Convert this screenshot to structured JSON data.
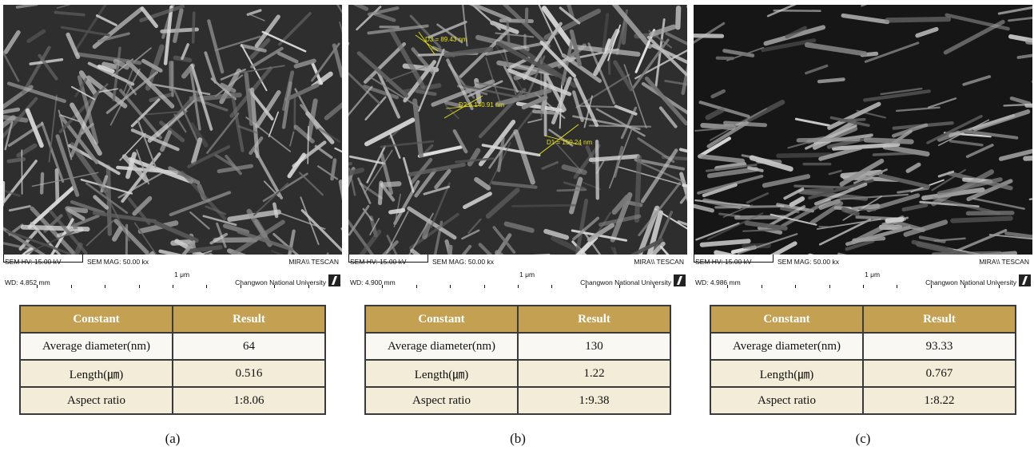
{
  "panels": [
    {
      "caption": "(a)",
      "sem": {
        "hv": "SEM HV: 15.00 kV",
        "mag": "SEM MAG: 50.00 kx",
        "brand": "MIRA\\\\ TESCAN",
        "scale": "1 μm",
        "wd": "WD: 4.852 mm",
        "university": "Changwon National  University"
      },
      "table": {
        "header": [
          "Constant",
          "Result"
        ],
        "rows": [
          [
            "Average diameter(nm)",
            "64"
          ],
          [
            "Length(㎛)",
            "0.516"
          ],
          [
            "Aspect ratio",
            "1:8.06"
          ]
        ]
      }
    },
    {
      "caption": "(b)",
      "sem": {
        "hv": "SEM HV: 15.00 kV",
        "mag": "SEM MAG: 50.00 kx",
        "brand": "MIRA\\\\ TESCAN",
        "scale": "1 μm",
        "wd": "WD: 4.900 mm",
        "university": "Changwon National  University",
        "measurements": [
          "D3 = 89.43 nm",
          "D2 = 140.91 nm",
          "D1 = 150.24 nm"
        ]
      },
      "table": {
        "header": [
          "Constant",
          "Result"
        ],
        "rows": [
          [
            "Average diameter(nm)",
            "130"
          ],
          [
            "Length(㎛)",
            "1.22"
          ],
          [
            "Aspect ratio",
            "1:9.38"
          ]
        ]
      }
    },
    {
      "caption": "(c)",
      "sem": {
        "hv": "SEM HV: 15.00 kV",
        "mag": "SEM MAG: 50.00 kx",
        "brand": "MIRA\\\\ TESCAN",
        "scale": "1 μm",
        "wd": "WD: 4.986 mm",
        "university": "Changwon National  University"
      },
      "table": {
        "header": [
          "Constant",
          "Result"
        ],
        "rows": [
          [
            "Average diameter(nm)",
            "93.33"
          ],
          [
            "Length(㎛)",
            "0.767"
          ],
          [
            "Aspect ratio",
            "1:8.22"
          ]
        ]
      }
    }
  ],
  "colors": {
    "table_header_bg": "#c4a152",
    "table_header_text": "#ffffff",
    "table_cell_bg": "#f3ecd8",
    "measurement_line": "#e6e020"
  }
}
